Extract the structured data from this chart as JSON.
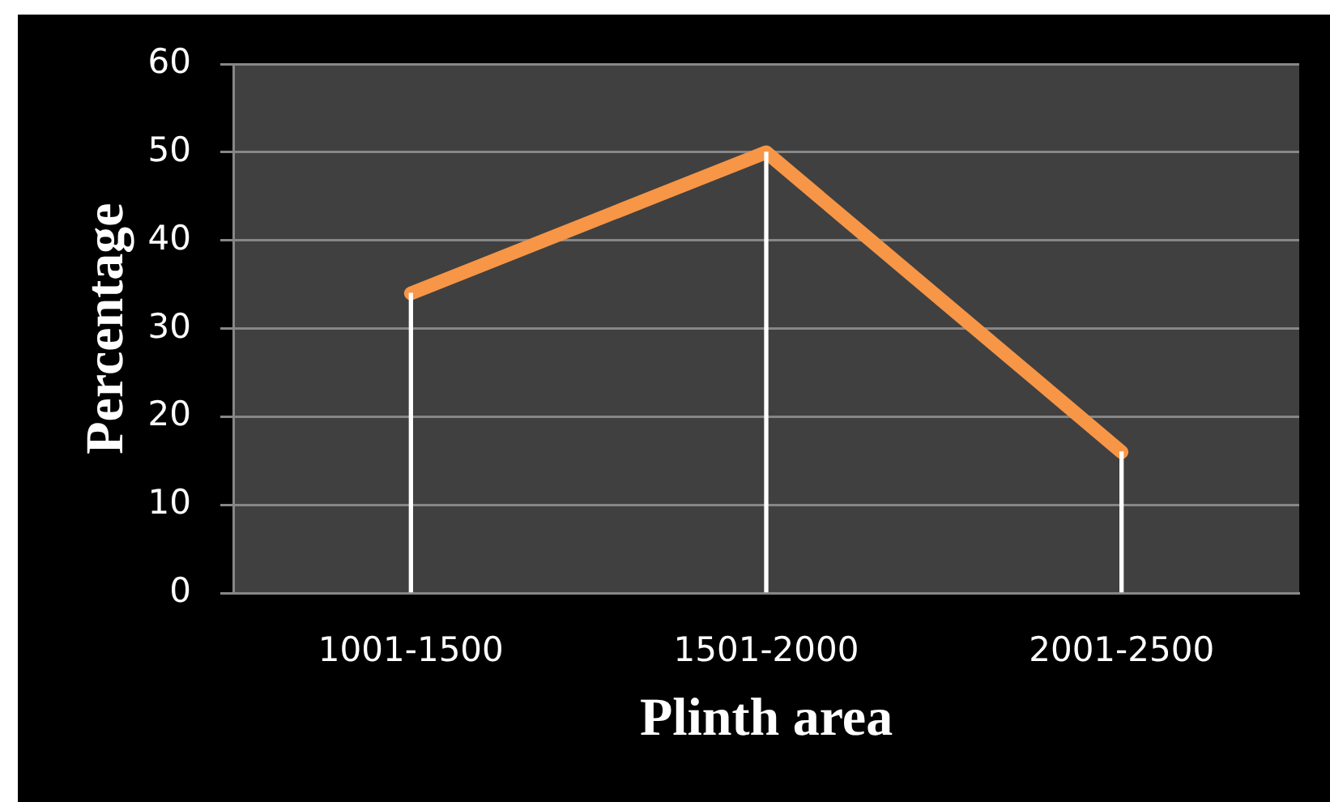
{
  "chart_data": {
    "type": "line",
    "xlabel": "Plinth area",
    "ylabel": "Percentage",
    "categories": [
      "1001-1500",
      "1501-2000",
      "2001-2500"
    ],
    "series": [
      {
        "type": "bar",
        "color": "#ffffff",
        "values": [
          34,
          50,
          16
        ]
      },
      {
        "color": "#f79646",
        "values": [
          34,
          50,
          16
        ]
      }
    ],
    "ylim": [
      0,
      60
    ],
    "yticks": [
      0,
      10,
      20,
      30,
      40,
      50,
      60
    ],
    "grid": "y",
    "legend": false,
    "marker": "none",
    "line_style": "solid"
  }
}
